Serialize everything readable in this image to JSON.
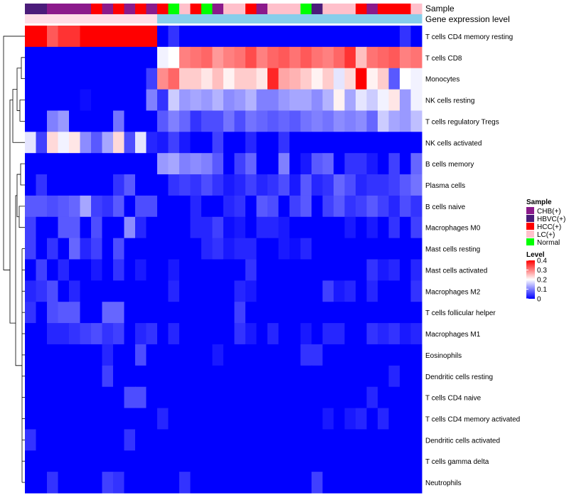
{
  "chart_data": {
    "type": "heatmap",
    "annotation_labels": {
      "sample": "Sample",
      "expression": "Gene expression level"
    },
    "legend_sample": {
      "title": "Sample",
      "entries": [
        {
          "label": "CHB(+)",
          "color": "#8B1A8B"
        },
        {
          "label": "HBVC(+)",
          "color": "#4B1C7A"
        },
        {
          "label": "HCC(+)",
          "color": "#FF0000"
        },
        {
          "label": "LC(+)",
          "color": "#FFC0CB"
        },
        {
          "label": "Normal",
          "color": "#00FF00"
        }
      ]
    },
    "legend_level": {
      "title": "Level",
      "min": 0,
      "max": 0.4,
      "tick_values": [
        0,
        0.1,
        0.2,
        0.3,
        0.4
      ],
      "tick_labels": [
        "0",
        "0.1",
        "0.2",
        "0.3",
        "0.4"
      ]
    },
    "color_scale": {
      "low": "#0000FF",
      "mid": "#FFFFFF",
      "high": "#FF0000",
      "low_value": 0,
      "mid_value": 0.2,
      "high_value": 0.4
    },
    "expression_bar_colors": {
      "left": "#FFDDE6",
      "right": "#87CEEB"
    },
    "samples": [
      "HBVC(+)",
      "HBVC(+)",
      "CHB(+)",
      "CHB(+)",
      "CHB(+)",
      "CHB(+)",
      "HCC(+)",
      "CHB(+)",
      "HCC(+)",
      "CHB(+)",
      "HCC(+)",
      "CHB(+)",
      "HCC(+)",
      "Normal",
      "LC(+)",
      "HCC(+)",
      "Normal",
      "CHB(+)",
      "LC(+)",
      "LC(+)",
      "HCC(+)",
      "CHB(+)",
      "LC(+)",
      "LC(+)",
      "LC(+)",
      "Normal",
      "HBVC(+)",
      "LC(+)",
      "LC(+)",
      "LC(+)",
      "HCC(+)",
      "CHB(+)",
      "HCC(+)",
      "HCC(+)",
      "HCC(+)",
      "LC(+)"
    ],
    "expression_group": [
      "LC(+)",
      "LC(+)",
      "LC(+)",
      "LC(+)",
      "LC(+)",
      "LC(+)",
      "LC(+)",
      "LC(+)",
      "LC(+)",
      "LC(+)",
      "LC(+)",
      "LC(+)",
      "other",
      "other",
      "other",
      "other",
      "other",
      "other",
      "other",
      "other",
      "other",
      "other",
      "other",
      "other",
      "other",
      "other",
      "other",
      "other",
      "other",
      "other",
      "other",
      "other",
      "other",
      "other",
      "other",
      "other"
    ],
    "rows": [
      "T cells CD4 memory resting",
      "T cells CD8",
      "Monocytes",
      "NK cells resting",
      "T cells regulatory  Tregs",
      "NK cells activated",
      "B cells memory",
      "Plasma cells",
      "B cells naive",
      "Macrophages M0",
      "Mast cells resting",
      "Mast cells activated",
      "Macrophages M2",
      "T cells follicular helper",
      "Macrophages M1",
      "Eosinophils",
      "Dendritic cells resting",
      "T cells CD4 naive",
      "T cells CD4 memory activated",
      "Dendritic cells activated",
      "T cells gamma delta",
      "Neutrophils"
    ],
    "values": [
      [
        0.4,
        0.4,
        0.33,
        0.36,
        0.36,
        0.4,
        0.4,
        0.4,
        0.4,
        0.4,
        0.4,
        0.4,
        0.0,
        0.04,
        0.0,
        0.0,
        0.0,
        0.0,
        0.0,
        0.0,
        0.0,
        0.0,
        0.0,
        0.0,
        0.0,
        0.0,
        0.0,
        0.0,
        0.0,
        0.0,
        0.0,
        0.0,
        0.0,
        0.0,
        0.04,
        0.0
      ],
      [
        0.0,
        0.0,
        0.0,
        0.0,
        0.0,
        0.0,
        0.0,
        0.0,
        0.0,
        0.0,
        0.0,
        0.0,
        0.19,
        0.2,
        0.3,
        0.31,
        0.32,
        0.28,
        0.3,
        0.31,
        0.34,
        0.3,
        0.32,
        0.33,
        0.31,
        0.33,
        0.31,
        0.3,
        0.32,
        0.36,
        0.25,
        0.31,
        0.32,
        0.33,
        0.3,
        0.31
      ],
      [
        0.0,
        0.0,
        0.0,
        0.0,
        0.0,
        0.0,
        0.0,
        0.0,
        0.0,
        0.0,
        0.0,
        0.05,
        0.29,
        0.32,
        0.24,
        0.24,
        0.22,
        0.25,
        0.21,
        0.24,
        0.24,
        0.22,
        0.37,
        0.27,
        0.26,
        0.24,
        0.21,
        0.24,
        0.18,
        0.23,
        0.4,
        0.21,
        0.24,
        0.07,
        0.2,
        0.19
      ],
      [
        0.0,
        0.0,
        0.0,
        0.0,
        0.0,
        0.01,
        0.0,
        0.0,
        0.0,
        0.0,
        0.0,
        0.1,
        0.04,
        0.16,
        0.12,
        0.13,
        0.12,
        0.14,
        0.11,
        0.12,
        0.14,
        0.1,
        0.1,
        0.12,
        0.13,
        0.13,
        0.11,
        0.14,
        0.21,
        0.13,
        0.18,
        0.16,
        0.19,
        0.22,
        0.12,
        0.19
      ],
      [
        0.0,
        0.0,
        0.1,
        0.12,
        0.0,
        0.0,
        0.0,
        0.0,
        0.09,
        0.0,
        0.0,
        0.0,
        0.07,
        0.1,
        0.08,
        0.04,
        0.06,
        0.06,
        0.09,
        0.06,
        0.09,
        0.08,
        0.07,
        0.08,
        0.07,
        0.09,
        0.1,
        0.09,
        0.11,
        0.1,
        0.11,
        0.08,
        0.16,
        0.13,
        0.12,
        0.15
      ],
      [
        0.18,
        0.05,
        0.23,
        0.19,
        0.22,
        0.11,
        0.07,
        0.13,
        0.23,
        0.06,
        0.18,
        0.03,
        0.02,
        0.05,
        0.02,
        0.0,
        0.0,
        0.05,
        0.0,
        0.0,
        0.03,
        0.0,
        0.0,
        0.04,
        0.0,
        0.0,
        0.0,
        0.0,
        0.0,
        0.0,
        0.0,
        0.0,
        0.0,
        0.0,
        0.0,
        0.0
      ],
      [
        0.0,
        0.0,
        0.0,
        0.0,
        0.0,
        0.0,
        0.0,
        0.0,
        0.0,
        0.0,
        0.0,
        0.0,
        0.12,
        0.13,
        0.1,
        0.11,
        0.1,
        0.07,
        0.0,
        0.05,
        0.08,
        0.0,
        0.0,
        0.1,
        0.0,
        0.02,
        0.07,
        0.08,
        0.0,
        0.04,
        0.04,
        0.02,
        0.0,
        0.05,
        0.0,
        0.08
      ],
      [
        0.0,
        0.04,
        0.0,
        0.0,
        0.0,
        0.0,
        0.0,
        0.0,
        0.04,
        0.07,
        0.0,
        0.0,
        0.0,
        0.04,
        0.05,
        0.04,
        0.06,
        0.04,
        0.02,
        0.03,
        0.05,
        0.03,
        0.04,
        0.06,
        0.02,
        0.07,
        0.03,
        0.04,
        0.08,
        0.06,
        0.03,
        0.04,
        0.04,
        0.05,
        0.07,
        0.09
      ],
      [
        0.07,
        0.07,
        0.06,
        0.07,
        0.08,
        0.13,
        0.05,
        0.04,
        0.07,
        0.0,
        0.06,
        0.06,
        0.0,
        0.0,
        0.0,
        0.03,
        0.0,
        0.0,
        0.03,
        0.04,
        0.0,
        0.07,
        0.06,
        0.0,
        0.05,
        0.07,
        0.0,
        0.05,
        0.07,
        0.04,
        0.05,
        0.07,
        0.05,
        0.03,
        0.06,
        0.04
      ],
      [
        0.05,
        0.0,
        0.0,
        0.07,
        0.07,
        0.0,
        0.06,
        0.0,
        0.0,
        0.11,
        0.03,
        0.0,
        0.0,
        0.0,
        0.0,
        0.03,
        0.03,
        0.05,
        0.01,
        0.02,
        0.0,
        0.03,
        0.03,
        0.02,
        0.0,
        0.0,
        0.0,
        0.0,
        0.0,
        0.02,
        0.0,
        0.02,
        0.0,
        0.04,
        0.0,
        0.05
      ],
      [
        0.05,
        0.0,
        0.04,
        0.0,
        0.08,
        0.03,
        0.05,
        0.0,
        0.06,
        0.0,
        0.0,
        0.0,
        0.0,
        0.0,
        0.0,
        0.0,
        0.03,
        0.04,
        0.02,
        0.03,
        0.03,
        0.0,
        0.0,
        0.02,
        0.01,
        0.03,
        0.0,
        0.0,
        0.0,
        0.0,
        0.0,
        0.0,
        0.0,
        0.0,
        0.0,
        0.0
      ],
      [
        0.0,
        0.05,
        0.0,
        0.03,
        0.0,
        0.0,
        0.02,
        0.0,
        0.04,
        0.0,
        0.02,
        0.0,
        0.0,
        0.02,
        0.0,
        0.0,
        0.0,
        0.0,
        0.0,
        0.0,
        0.04,
        0.0,
        0.0,
        0.0,
        0.0,
        0.0,
        0.0,
        0.0,
        0.0,
        0.0,
        0.0,
        0.04,
        0.02,
        0.03,
        0.0,
        0.03
      ],
      [
        0.03,
        0.04,
        0.06,
        0.0,
        0.03,
        0.0,
        0.0,
        0.0,
        0.0,
        0.0,
        0.0,
        0.0,
        0.0,
        0.03,
        0.0,
        0.0,
        0.0,
        0.0,
        0.0,
        0.03,
        0.02,
        0.0,
        0.0,
        0.0,
        0.0,
        0.0,
        0.0,
        0.05,
        0.02,
        0.03,
        0.0,
        0.03,
        0.0,
        0.0,
        0.0,
        0.04
      ],
      [
        0.04,
        0.0,
        0.06,
        0.07,
        0.07,
        0.0,
        0.0,
        0.08,
        0.08,
        0.0,
        0.0,
        0.0,
        0.0,
        0.0,
        0.0,
        0.0,
        0.0,
        0.0,
        0.0,
        0.05,
        0.0,
        0.0,
        0.0,
        0.0,
        0.0,
        0.0,
        0.0,
        0.0,
        0.0,
        0.0,
        0.0,
        0.0,
        0.0,
        0.0,
        0.0,
        0.0
      ],
      [
        0.0,
        0.0,
        0.03,
        0.03,
        0.04,
        0.05,
        0.06,
        0.04,
        0.05,
        0.0,
        0.03,
        0.04,
        0.0,
        0.03,
        0.0,
        0.0,
        0.0,
        0.0,
        0.0,
        0.04,
        0.02,
        0.0,
        0.03,
        0.0,
        0.0,
        0.02,
        0.0,
        0.03,
        0.03,
        0.0,
        0.0,
        0.04,
        0.03,
        0.04,
        0.02,
        0.03
      ],
      [
        0.0,
        0.0,
        0.0,
        0.0,
        0.0,
        0.0,
        0.0,
        0.03,
        0.0,
        0.0,
        0.06,
        0.0,
        0.0,
        0.0,
        0.0,
        0.0,
        0.0,
        0.02,
        0.0,
        0.0,
        0.0,
        0.0,
        0.0,
        0.0,
        0.0,
        0.04,
        0.04,
        0.0,
        0.0,
        0.0,
        0.0,
        0.0,
        0.0,
        0.0,
        0.0,
        0.0
      ],
      [
        0.0,
        0.0,
        0.0,
        0.0,
        0.0,
        0.0,
        0.0,
        0.05,
        0.0,
        0.0,
        0.0,
        0.0,
        0.0,
        0.0,
        0.0,
        0.0,
        0.0,
        0.0,
        0.0,
        0.0,
        0.0,
        0.0,
        0.0,
        0.0,
        0.0,
        0.0,
        0.0,
        0.0,
        0.0,
        0.0,
        0.0,
        0.0,
        0.0,
        0.03,
        0.0,
        0.0
      ],
      [
        0.0,
        0.0,
        0.0,
        0.0,
        0.0,
        0.0,
        0.0,
        0.0,
        0.0,
        0.06,
        0.06,
        0.0,
        0.0,
        0.0,
        0.0,
        0.0,
        0.0,
        0.0,
        0.0,
        0.0,
        0.0,
        0.0,
        0.0,
        0.0,
        0.0,
        0.0,
        0.0,
        0.0,
        0.0,
        0.0,
        0.0,
        0.03,
        0.0,
        0.0,
        0.0,
        0.0
      ],
      [
        0.0,
        0.0,
        0.0,
        0.0,
        0.0,
        0.0,
        0.0,
        0.0,
        0.0,
        0.0,
        0.0,
        0.0,
        0.03,
        0.0,
        0.0,
        0.0,
        0.0,
        0.0,
        0.0,
        0.0,
        0.0,
        0.0,
        0.0,
        0.0,
        0.0,
        0.0,
        0.0,
        0.02,
        0.0,
        0.02,
        0.03,
        0.0,
        0.03,
        0.0,
        0.0,
        0.0
      ],
      [
        0.04,
        0.0,
        0.0,
        0.0,
        0.0,
        0.0,
        0.0,
        0.0,
        0.0,
        0.04,
        0.0,
        0.0,
        0.0,
        0.0,
        0.0,
        0.0,
        0.0,
        0.0,
        0.0,
        0.0,
        0.0,
        0.0,
        0.0,
        0.0,
        0.0,
        0.0,
        0.0,
        0.0,
        0.0,
        0.0,
        0.0,
        0.0,
        0.0,
        0.0,
        0.0,
        0.0
      ],
      [
        0.0,
        0.0,
        0.0,
        0.0,
        0.0,
        0.0,
        0.0,
        0.0,
        0.0,
        0.0,
        0.0,
        0.0,
        0.0,
        0.0,
        0.0,
        0.0,
        0.0,
        0.0,
        0.0,
        0.0,
        0.0,
        0.0,
        0.0,
        0.0,
        0.0,
        0.0,
        0.0,
        0.0,
        0.0,
        0.0,
        0.0,
        0.0,
        0.0,
        0.0,
        0.0,
        0.0
      ],
      [
        0.0,
        0.0,
        0.04,
        0.0,
        0.0,
        0.0,
        0.0,
        0.05,
        0.04,
        0.0,
        0.0,
        0.0,
        0.0,
        0.0,
        0.04,
        0.0,
        0.0,
        0.0,
        0.0,
        0.0,
        0.0,
        0.0,
        0.0,
        0.0,
        0.0,
        0.0,
        0.05,
        0.0,
        0.0,
        0.0,
        0.0,
        0.0,
        0.0,
        0.0,
        0.0,
        0.0
      ]
    ]
  }
}
